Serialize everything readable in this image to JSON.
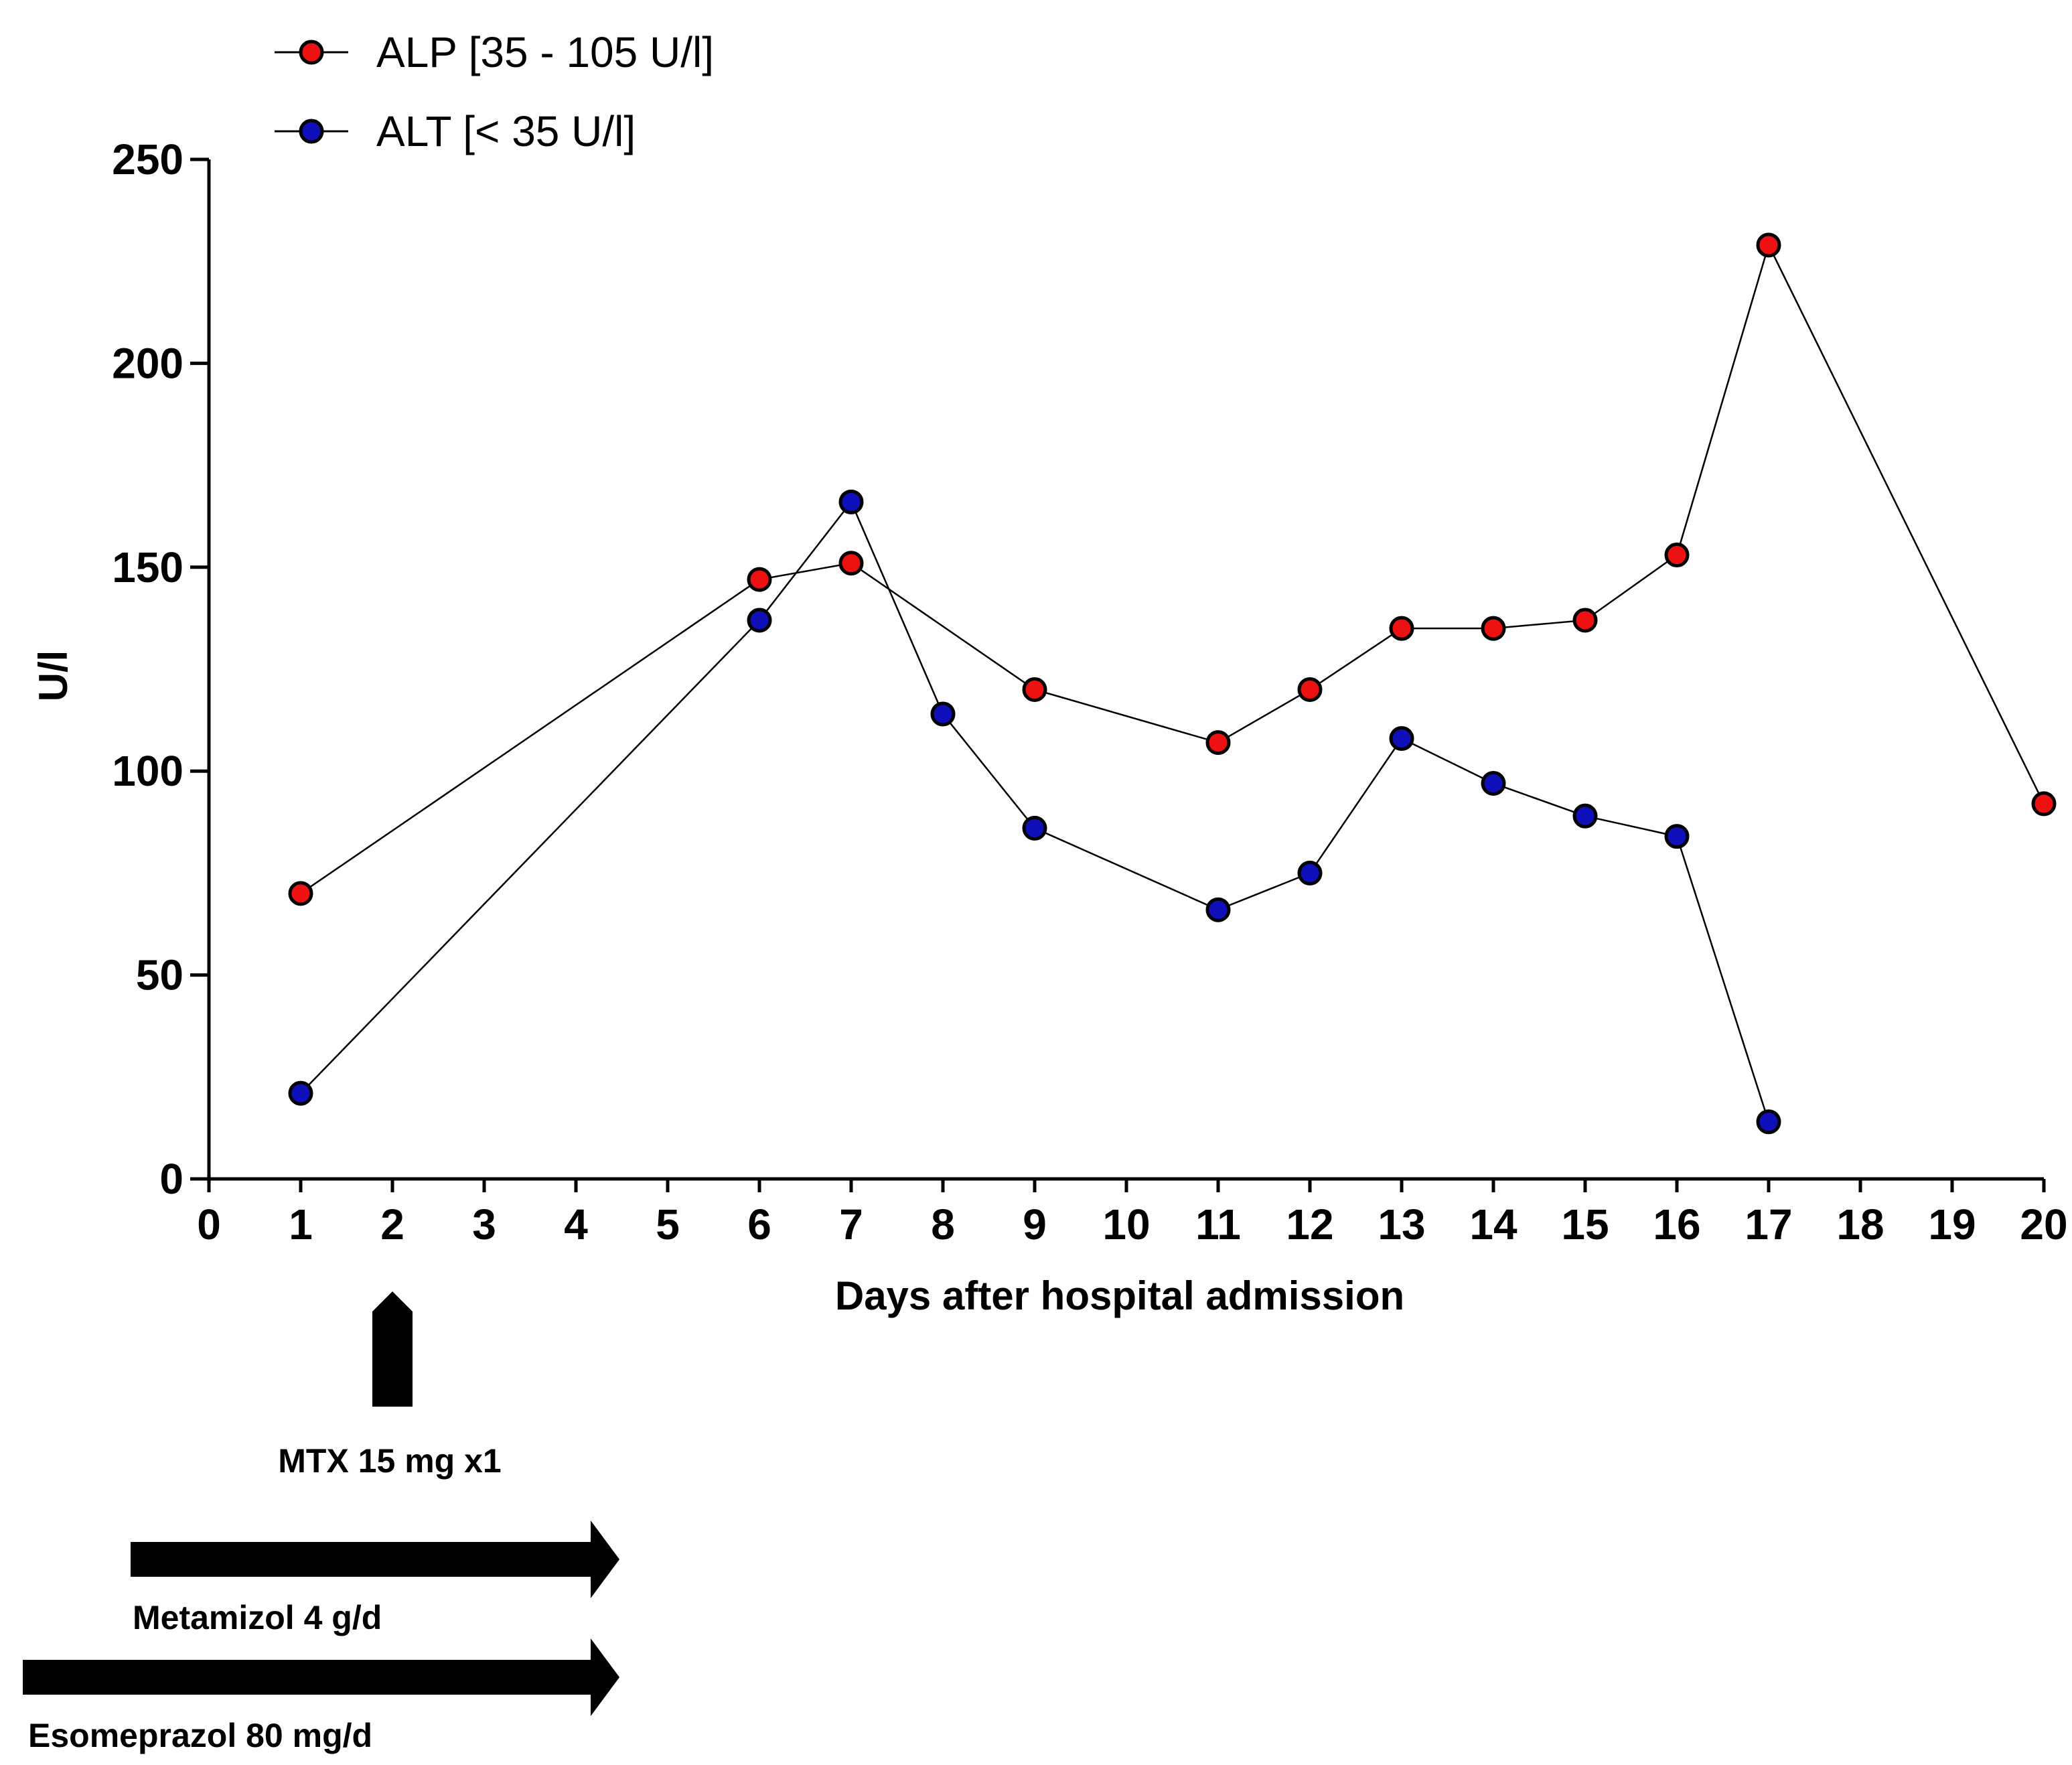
{
  "chart_data": {
    "type": "line",
    "title": "",
    "xlabel": "Days after hospital admission",
    "ylabel": "U/l",
    "ylim": [
      0,
      250
    ],
    "yticks": [
      "0",
      "50",
      "100",
      "150",
      "200",
      "250"
    ],
    "x_categories": [
      "0",
      "1",
      "2",
      "3",
      "4",
      "5",
      "6",
      "7",
      "8",
      "9",
      "10",
      "11",
      "12",
      "13",
      "14",
      "15",
      "16",
      "17",
      "18",
      "19",
      "20"
    ],
    "legend_position": "top-left",
    "series": [
      {
        "name": "ALP [35 - 105 U/l]",
        "color": "#ee1111",
        "x": [
          "1",
          "6",
          "7",
          "9",
          "11",
          "12",
          "13",
          "14",
          "15",
          "16",
          "17",
          "20"
        ],
        "values": [
          70,
          147,
          151,
          120,
          107,
          120,
          135,
          135,
          137,
          153,
          229,
          92
        ]
      },
      {
        "name": "ALT [< 35 U/l]",
        "color": "#1010bb",
        "x": [
          "1",
          "6",
          "7",
          "8",
          "9",
          "11",
          "12",
          "13",
          "14",
          "15",
          "16",
          "17"
        ],
        "values": [
          21,
          137,
          166,
          114,
          86,
          66,
          75,
          108,
          97,
          89,
          84,
          14
        ]
      }
    ],
    "annotations": [
      {
        "type": "arrow-up",
        "label": "MTX 15 mg x1",
        "at": "2"
      },
      {
        "type": "arrow-right",
        "label": "Metamizol 4 g/d",
        "from": "1",
        "to": "5"
      },
      {
        "type": "arrow-right",
        "label": "Esomeprazol 80 mg/d",
        "from": "0",
        "to": "5"
      }
    ]
  }
}
